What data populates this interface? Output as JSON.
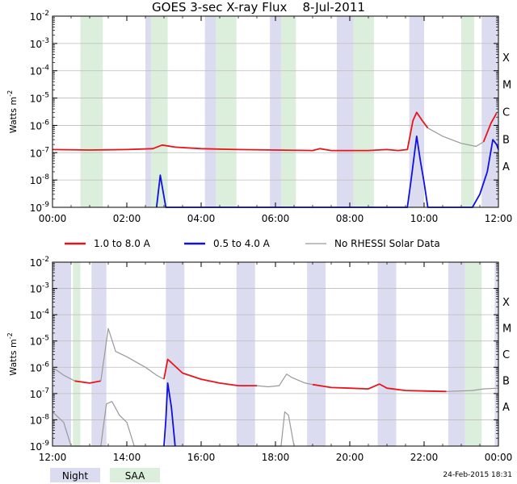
{
  "title": "GOES 3-sec X-ray Flux    8-Jul-2011",
  "footer_date": "24-Feb-2015 18:31",
  "colors": {
    "long_channel": "#e8141b",
    "short_channel": "#1010e0",
    "no_rhessi": "#999999",
    "night": "#dcdcf0",
    "saa": "#dcefdc",
    "grid": "#bbbbbb"
  },
  "legend": {
    "items": [
      {
        "label": "1.0 to 8.0 A",
        "color": "#e8141b"
      },
      {
        "label": "0.5 to 4.0 A",
        "color": "#1010e0"
      },
      {
        "label": "No RHESSI Solar Data",
        "color": "#999999"
      }
    ],
    "shading": [
      {
        "label": "Night",
        "color": "#dcdcf0"
      },
      {
        "label": "SAA",
        "color": "#dcefdc"
      }
    ]
  },
  "chart_data": [
    {
      "type": "line",
      "ylabel": "Watts m",
      "ylabel_exp": "-2",
      "y_scale": "log",
      "ylim": [
        1e-09,
        0.01
      ],
      "y_ticks": [
        {
          "base": "10",
          "exp": "-2"
        },
        {
          "base": "10",
          "exp": "-3"
        },
        {
          "base": "10",
          "exp": "-4"
        },
        {
          "base": "10",
          "exp": "-5"
        },
        {
          "base": "10",
          "exp": "-6"
        },
        {
          "base": "10",
          "exp": "-7"
        },
        {
          "base": "10",
          "exp": "-8"
        },
        {
          "base": "10",
          "exp": "-9"
        }
      ],
      "flare_classes": [
        "X",
        "M",
        "C",
        "B",
        "A"
      ],
      "x_ticks": [
        "00:00",
        "02:00",
        "04:00",
        "06:00",
        "08:00",
        "10:00",
        "12:00"
      ],
      "xlim_hours": [
        0,
        12
      ],
      "grid": true,
      "night_bands_hours": [
        [
          0.75,
          1.35
        ],
        [
          2.5,
          2.65
        ],
        [
          4.1,
          4.4
        ],
        [
          5.85,
          6.15
        ],
        [
          7.65,
          8.1
        ],
        [
          9.6,
          10.0
        ],
        [
          11.55,
          12.0
        ]
      ],
      "saa_bands_hours": [
        [
          0.75,
          1.35
        ],
        [
          2.65,
          3.1
        ],
        [
          4.4,
          4.95
        ],
        [
          6.15,
          6.55
        ],
        [
          8.1,
          8.65
        ],
        [
          11.0,
          11.35
        ]
      ],
      "series": [
        {
          "name": "1.0 to 8.0 A",
          "points": [
            [
              0,
              1.3e-07
            ],
            [
              1.0,
              1.25e-07
            ],
            [
              2.0,
              1.3e-07
            ],
            [
              2.7,
              1.4e-07
            ],
            [
              2.95,
              1.9e-07
            ],
            [
              3.3,
              1.6e-07
            ],
            [
              4.0,
              1.4e-07
            ],
            [
              5.0,
              1.3e-07
            ],
            [
              6.0,
              1.25e-07
            ],
            [
              7.0,
              1.2e-07
            ],
            [
              7.2,
              1.4e-07
            ],
            [
              7.5,
              1.2e-07
            ],
            [
              8.5,
              1.2e-07
            ],
            [
              9.0,
              1.3e-07
            ],
            [
              9.3,
              1.2e-07
            ],
            [
              9.55,
              1.3e-07
            ],
            [
              9.7,
              1.5e-06
            ],
            [
              9.8,
              3e-06
            ],
            [
              9.95,
              1.5e-06
            ],
            [
              10.1,
              8e-07
            ]
          ]
        },
        {
          "name": "No RHESSI Solar Data",
          "points": [
            [
              10.1,
              8e-07
            ],
            [
              10.5,
              4e-07
            ],
            [
              11.0,
              2.2e-07
            ],
            [
              11.4,
              1.7e-07
            ],
            [
              11.6,
              2.5e-07
            ]
          ]
        },
        {
          "name": "1.0 to 8.0 A",
          "points": [
            [
              11.6,
              2.5e-07
            ],
            [
              11.8,
              1.2e-06
            ],
            [
              11.95,
              2.8e-06
            ]
          ]
        },
        {
          "name": "0.5 to 4.0 A",
          "points": [
            [
              2.8,
              1e-09
            ],
            [
              2.9,
              1.5e-08
            ],
            [
              2.95,
              6e-09
            ],
            [
              3.05,
              1e-09
            ],
            [
              9.55,
              1e-09
            ],
            [
              9.65,
              1e-08
            ],
            [
              9.8,
              4e-07
            ],
            [
              9.9,
              5e-08
            ],
            [
              10.0,
              8e-09
            ],
            [
              10.1,
              1e-09
            ],
            [
              11.3,
              1e-09
            ],
            [
              11.5,
              3e-09
            ],
            [
              11.7,
              2e-08
            ],
            [
              11.85,
              3e-07
            ],
            [
              11.95,
              2e-07
            ],
            [
              12.0,
              1.3e-07
            ]
          ]
        }
      ]
    },
    {
      "type": "line",
      "ylabel": "Watts m",
      "ylabel_exp": "-2",
      "y_scale": "log",
      "ylim": [
        1e-09,
        0.01
      ],
      "y_ticks": [
        {
          "base": "10",
          "exp": "-2"
        },
        {
          "base": "10",
          "exp": "-3"
        },
        {
          "base": "10",
          "exp": "-4"
        },
        {
          "base": "10",
          "exp": "-5"
        },
        {
          "base": "10",
          "exp": "-6"
        },
        {
          "base": "10",
          "exp": "-7"
        },
        {
          "base": "10",
          "exp": "-8"
        },
        {
          "base": "10",
          "exp": "-9"
        }
      ],
      "flare_classes": [
        "X",
        "M",
        "C",
        "B",
        "A"
      ],
      "x_ticks": [
        "12:00",
        "14:00",
        "16:00",
        "18:00",
        "20:00",
        "22:00",
        "00:00"
      ],
      "xlim_hours": [
        12,
        24
      ],
      "grid": true,
      "night_bands_hours": [
        [
          12.0,
          12.5
        ],
        [
          13.05,
          13.45
        ],
        [
          15.05,
          15.55
        ],
        [
          16.95,
          17.45
        ],
        [
          18.85,
          19.35
        ],
        [
          20.75,
          21.25
        ],
        [
          22.65,
          23.1
        ],
        [
          23.9,
          24.0
        ]
      ],
      "saa_bands_hours": [
        [
          12.55,
          12.75
        ],
        [
          23.1,
          23.55
        ]
      ],
      "series": [
        {
          "name": "No RHESSI Solar Data",
          "points": [
            [
              12.0,
              1e-06
            ],
            [
              12.3,
              5e-07
            ],
            [
              12.6,
              3e-07
            ]
          ]
        },
        {
          "name": "1.0 to 8.0 A",
          "points": [
            [
              12.6,
              3e-07
            ],
            [
              13.0,
              2.5e-07
            ],
            [
              13.3,
              3e-07
            ]
          ]
        },
        {
          "name": "No RHESSI Solar Data",
          "points": [
            [
              13.3,
              3e-07
            ],
            [
              13.5,
              3e-05
            ],
            [
              13.7,
              4e-06
            ],
            [
              14.0,
              2.5e-06
            ],
            [
              14.5,
              1e-06
            ],
            [
              14.8,
              5e-07
            ],
            [
              15.0,
              3.5e-07
            ]
          ]
        },
        {
          "name": "1.0 to 8.0 A",
          "points": [
            [
              15.0,
              3.5e-07
            ],
            [
              15.1,
              2e-06
            ],
            [
              15.2,
              1.5e-06
            ],
            [
              15.5,
              6e-07
            ],
            [
              16.0,
              3.5e-07
            ],
            [
              16.5,
              2.5e-07
            ],
            [
              17.0,
              2e-07
            ],
            [
              17.5,
              2e-07
            ]
          ]
        },
        {
          "name": "No RHESSI Solar Data",
          "points": [
            [
              17.5,
              2e-07
            ],
            [
              17.8,
              1.8e-07
            ],
            [
              18.1,
              2e-07
            ],
            [
              18.3,
              5.5e-07
            ],
            [
              18.45,
              4e-07
            ],
            [
              18.8,
              2.5e-07
            ],
            [
              19.0,
              2.2e-07
            ]
          ]
        },
        {
          "name": "1.0 to 8.0 A",
          "points": [
            [
              19.0,
              2.2e-07
            ],
            [
              19.5,
              1.7e-07
            ],
            [
              20.0,
              1.6e-07
            ],
            [
              20.5,
              1.5e-07
            ],
            [
              20.8,
              2.3e-07
            ],
            [
              21.0,
              1.6e-07
            ],
            [
              21.5,
              1.3e-07
            ],
            [
              22.0,
              1.25e-07
            ],
            [
              22.6,
              1.2e-07
            ]
          ]
        },
        {
          "name": "No RHESSI Solar Data",
          "points": [
            [
              22.6,
              1.2e-07
            ],
            [
              23.3,
              1.3e-07
            ],
            [
              23.6,
              1.5e-07
            ],
            [
              24.0,
              1.6e-07
            ]
          ]
        },
        {
          "name": "No RHESSI Solar Data",
          "points": [
            [
              12.0,
              2e-08
            ],
            [
              12.3,
              8e-09
            ],
            [
              12.5,
              1e-09
            ],
            [
              13.3,
              1e-09
            ],
            [
              13.45,
              4e-08
            ],
            [
              13.6,
              5e-08
            ],
            [
              13.8,
              1.5e-08
            ],
            [
              14.0,
              8e-09
            ],
            [
              14.2,
              1e-09
            ],
            [
              18.15,
              1e-09
            ],
            [
              18.25,
              2e-08
            ],
            [
              18.35,
              1.5e-08
            ],
            [
              18.5,
              1e-09
            ]
          ]
        },
        {
          "name": "0.5 to 4.0 A",
          "points": [
            [
              15.0,
              1e-09
            ],
            [
              15.05,
              1e-08
            ],
            [
              15.1,
              2.5e-07
            ],
            [
              15.2,
              3e-08
            ],
            [
              15.3,
              1e-09
            ]
          ]
        }
      ]
    }
  ]
}
